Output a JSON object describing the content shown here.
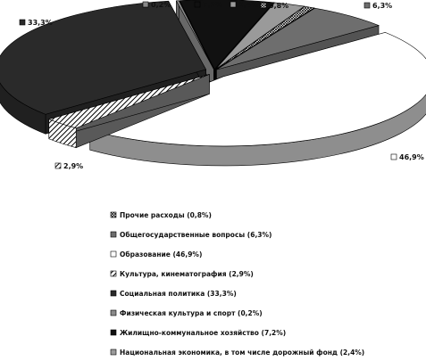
{
  "chart_data": {
    "type": "pie",
    "style": "3d-exploded",
    "title": "",
    "slices": [
      {
        "label": "Прочие расходы",
        "value": 0.8,
        "value_label": "0,8%",
        "legend": "Прочие расходы (0,8%)",
        "fill": "pattern-grid",
        "color": "#d0d0d0"
      },
      {
        "label": "Общегосударственные вопросы",
        "value": 6.3,
        "value_label": "6,3%",
        "legend": "Общегосударственные вопросы (6,3%)",
        "fill": "solid",
        "color": "#6e6e6e"
      },
      {
        "label": "Образование",
        "value": 46.9,
        "value_label": "46,9%",
        "legend": "Образование (46,9%)",
        "fill": "solid",
        "color": "#ffffff"
      },
      {
        "label": "Культура, кинематография",
        "value": 2.9,
        "value_label": "2,9%",
        "legend": "Культура, кинематография (2,9%)",
        "fill": "pattern-diagonal",
        "color": "#ffffff"
      },
      {
        "label": "Социальная политика",
        "value": 33.3,
        "value_label": "33,3%",
        "legend": "Социальная политика (33,3%)",
        "fill": "solid",
        "color": "#2a2a2a"
      },
      {
        "label": "Физическая культура и спорт",
        "value": 0.2,
        "value_label": "0,2%",
        "legend": "Физическая культура и спорт (0,2%)",
        "fill": "solid",
        "color": "#8a8a8a"
      },
      {
        "label": "Жилищно-коммунальное хозяйство",
        "value": 7.2,
        "value_label": "7,2%",
        "legend": "Жилищно-коммунальное хозяйство (7,2%)",
        "fill": "solid",
        "color": "#111111"
      },
      {
        "label": "Национальная экономика, в том числе дорожный фонд",
        "value": 2.4,
        "value_label": "2,4%",
        "legend": "Национальная экономика, в том числе дорожный фонд (2,4%)",
        "fill": "solid",
        "color": "#9a9a9a"
      }
    ],
    "legend_position": "bottom"
  }
}
